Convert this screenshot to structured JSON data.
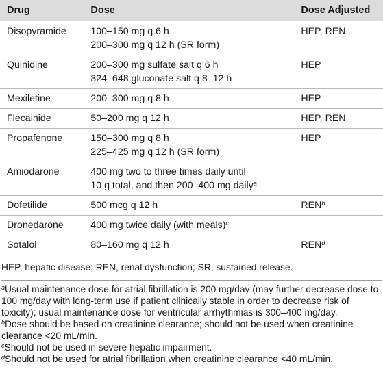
{
  "table": {
    "headers": [
      "Drug",
      "Dose",
      "Dose Adjusted"
    ],
    "rows": [
      {
        "drug": "Disopyramide",
        "dose": [
          "100–150 mg q 6 h",
          "200–300 mg q 12 h (SR form)"
        ],
        "dose_sup": "",
        "adjusted": "HEP, REN",
        "adjusted_sup": ""
      },
      {
        "drug": "Quinidine",
        "dose": [
          "200–300 mg sulfate salt q 6 h",
          "324–648 gluconate salt q 8–12 h"
        ],
        "dose_sup": "",
        "adjusted": "HEP",
        "adjusted_sup": ""
      },
      {
        "drug": "Mexiletine",
        "dose": [
          "200–300 mg q 8 h",
          ""
        ],
        "dose_sup": "",
        "adjusted": "HEP",
        "adjusted_sup": ""
      },
      {
        "drug": "Flecainide",
        "dose": [
          "50–200 mg q 12 h",
          ""
        ],
        "dose_sup": "",
        "adjusted": "HEP, REN",
        "adjusted_sup": ""
      },
      {
        "drug": "Propafenone",
        "dose": [
          "150–300 mg q 8 h",
          "225–425 mg q 12 h (SR form)"
        ],
        "dose_sup": "",
        "adjusted": "HEP",
        "adjusted_sup": ""
      },
      {
        "drug": "Amiodarone",
        "dose": [
          "400 mg two to three times daily until",
          "10 g total, and then 200–400 mg daily"
        ],
        "dose_sup": "a",
        "adjusted": "",
        "adjusted_sup": ""
      },
      {
        "drug": "Dofetilide",
        "dose": [
          "500 mcg q 12 h",
          ""
        ],
        "dose_sup": "",
        "adjusted": "REN",
        "adjusted_sup": "b"
      },
      {
        "drug": "Dronedarone",
        "dose": [
          "400 mg twice daily (with meals)",
          ""
        ],
        "dose_sup": "c",
        "adjusted": "",
        "adjusted_sup": ""
      },
      {
        "drug": "Sotalol",
        "dose": [
          "80–160 mg q 12 h",
          ""
        ],
        "dose_sup": "",
        "adjusted": "REN",
        "adjusted_sup": "d"
      }
    ]
  },
  "footnotes": {
    "abbreviations": "HEP, hepatic disease; REN, renal dysfunction; SR, sustained release.",
    "notes": [
      {
        "mark": "a",
        "text": "Usual maintenance dose for atrial fibrillation is 200 mg/day (may further decrease dose to 100 mg/day with long-term use if patient clinically stable in order to decrease risk of toxicity); usual maintenance dose for ventricular arrhythmias is 300–400 mg/day."
      },
      {
        "mark": "b",
        "text": "Dose should be based on creatinine clearance; should not be used when creatinine clearance <20 mL/min."
      },
      {
        "mark": "c",
        "text": "Should not be used in severe hepatic impairment."
      },
      {
        "mark": "d",
        "text": "Should not be used for atrial fibrillation when creatinine clearance <40 mL/min."
      }
    ]
  }
}
